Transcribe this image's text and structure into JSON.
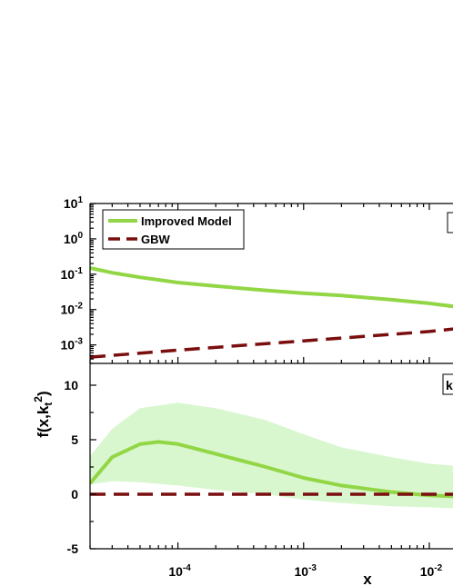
{
  "colors": {
    "improved": "#92d645",
    "band": "#d8f7cf",
    "gbw": "#7a0e0e",
    "axis": "#000000"
  },
  "chart_data": [
    {
      "type": "line",
      "panel": "top",
      "xscale": "log",
      "yscale": "log",
      "xlim": [
        2e-05,
        0.0165
      ],
      "ylim": [
        0.0003,
        10
      ],
      "yticks": [
        {
          "value": 10,
          "mant": "10",
          "exp": "1"
        },
        {
          "value": 1,
          "mant": "10",
          "exp": "0"
        },
        {
          "value": 0.1,
          "mant": "10",
          "exp": "-1"
        },
        {
          "value": 0.01,
          "mant": "10",
          "exp": "-2"
        },
        {
          "value": 0.001,
          "mant": "10",
          "exp": "-3"
        }
      ],
      "legend": {
        "position": "top-left",
        "entries": [
          "Improved Model",
          "GBW"
        ]
      },
      "series": [
        {
          "name": "Improved Model",
          "style": "solid",
          "x": [
            2e-05,
            3e-05,
            5e-05,
            0.0001,
            0.0002,
            0.0005,
            0.001,
            0.002,
            0.005,
            0.01,
            0.0165
          ],
          "y": [
            0.15,
            0.11,
            0.082,
            0.058,
            0.046,
            0.035,
            0.029,
            0.025,
            0.019,
            0.015,
            0.012
          ]
        },
        {
          "name": "GBW",
          "style": "dashed",
          "x": [
            2e-05,
            0.0001,
            0.001,
            0.01,
            0.0165
          ],
          "y": [
            0.00045,
            0.00071,
            0.0013,
            0.0024,
            0.0029
          ]
        }
      ]
    },
    {
      "type": "line",
      "panel": "bottom",
      "xscale": "log",
      "yscale": "linear",
      "xlim": [
        2e-05,
        0.0165
      ],
      "ylim": [
        -5,
        12
      ],
      "yticks": [
        -5,
        0,
        5,
        10
      ],
      "xticks": [
        {
          "value": 0.0001,
          "mant": "10",
          "exp": "-4"
        },
        {
          "value": 0.001,
          "mant": "10",
          "exp": "-3"
        },
        {
          "value": 0.01,
          "mant": "10",
          "exp": "-2"
        }
      ],
      "xlabel": "x",
      "ylabel_main": "f(x,k",
      "ylabel_sub": "t",
      "ylabel_sup": "2",
      "ylabel_end": ")",
      "band": {
        "x": [
          2e-05,
          3e-05,
          5e-05,
          0.0001,
          0.0002,
          0.0005,
          0.001,
          0.002,
          0.005,
          0.01,
          0.0165
        ],
        "upper": [
          3.5,
          6.0,
          7.9,
          8.4,
          7.9,
          6.8,
          5.5,
          4.3,
          3.4,
          2.8,
          2.6
        ],
        "lower": [
          0.9,
          1.2,
          1.1,
          0.8,
          0.4,
          0.0,
          -0.5,
          -0.8,
          -1.1,
          -1.2,
          -1.3
        ]
      },
      "series": [
        {
          "name": "Improved Model",
          "style": "solid",
          "x": [
            2e-05,
            3e-05,
            5e-05,
            7e-05,
            0.0001,
            0.0002,
            0.0005,
            0.001,
            0.002,
            0.005,
            0.01,
            0.0165
          ],
          "y": [
            1.0,
            3.4,
            4.6,
            4.8,
            4.6,
            3.7,
            2.5,
            1.5,
            0.8,
            0.2,
            -0.1,
            -0.2
          ]
        },
        {
          "name": "GBW",
          "style": "dashed",
          "x": [
            2e-05,
            0.0165
          ],
          "y": [
            0.0,
            0.0
          ]
        }
      ]
    }
  ]
}
